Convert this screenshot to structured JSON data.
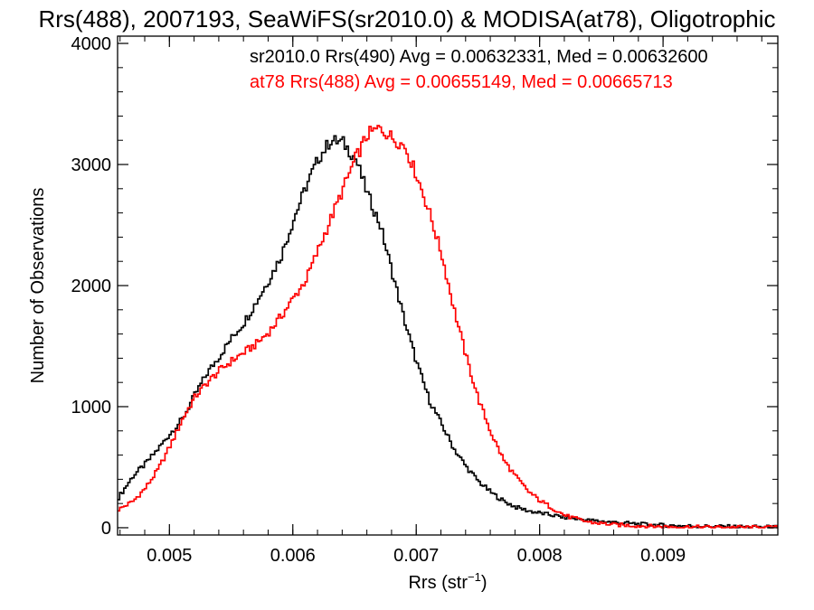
{
  "chart_data": {
    "type": "line",
    "title": "Rrs(488), 2007193, SeaWiFS(sr2010.0) & MODISA(at78), Oligotrophic",
    "xlabel": "Rrs (str",
    "xlabel_sup": "−1",
    "xlabel_close": ")",
    "ylabel": "Number of Observations",
    "xlim": [
      0.00458,
      0.00993
    ],
    "ylim": [
      -60,
      4060
    ],
    "x_ticks": [
      0.005,
      0.006,
      0.007,
      0.008,
      0.009
    ],
    "x_tick_labels": [
      "0.005",
      "0.006",
      "0.007",
      "0.008",
      "0.009"
    ],
    "y_ticks": [
      0,
      1000,
      2000,
      3000,
      4000
    ],
    "y_tick_labels": [
      "0",
      "1000",
      "2000",
      "3000",
      "4000"
    ],
    "x_minor_step": 0.0002,
    "y_minor_step": 200,
    "grid": false,
    "series": [
      {
        "name": "sr2010.0",
        "color": "#000000",
        "annotation": "sr2010.0 Rrs(490) Avg = 0.00632331, Med = 0.00632600",
        "x": [
          0.00458,
          0.0047,
          0.0048,
          0.0049,
          0.005,
          0.0051,
          0.0052,
          0.0053,
          0.0054,
          0.0055,
          0.0056,
          0.0057,
          0.0058,
          0.0059,
          0.006,
          0.0061,
          0.0062,
          0.0063,
          0.0064,
          0.0065,
          0.0066,
          0.0067,
          0.0068,
          0.0069,
          0.007,
          0.0071,
          0.0072,
          0.0073,
          0.0074,
          0.0075,
          0.0076,
          0.0077,
          0.0078,
          0.0079,
          0.008,
          0.0082,
          0.0084,
          0.0086,
          0.0088,
          0.009,
          0.0093,
          0.0096,
          0.00993
        ],
        "y": [
          250,
          430,
          530,
          650,
          780,
          900,
          1100,
          1280,
          1420,
          1570,
          1700,
          1870,
          2050,
          2250,
          2550,
          2820,
          3050,
          3200,
          3180,
          3050,
          2750,
          2500,
          2100,
          1700,
          1350,
          1050,
          850,
          650,
          500,
          380,
          290,
          220,
          170,
          140,
          120,
          85,
          60,
          45,
          30,
          20,
          12,
          8,
          5
        ]
      },
      {
        "name": "at78",
        "color": "#ff0000",
        "annotation": "at78 Rrs(488) Avg = 0.00655149, Med = 0.00665713",
        "x": [
          0.00458,
          0.0047,
          0.0048,
          0.0049,
          0.005,
          0.0051,
          0.0052,
          0.0053,
          0.0054,
          0.0055,
          0.0056,
          0.0057,
          0.0058,
          0.0059,
          0.006,
          0.0061,
          0.0062,
          0.0063,
          0.0064,
          0.0065,
          0.0066,
          0.0067,
          0.0068,
          0.0069,
          0.007,
          0.0071,
          0.0072,
          0.0073,
          0.0074,
          0.0075,
          0.0076,
          0.0077,
          0.0078,
          0.0079,
          0.008,
          0.0081,
          0.0082,
          0.0083,
          0.0084,
          0.0086,
          0.0088,
          0.009,
          0.0093,
          0.00993
        ],
        "y": [
          150,
          220,
          330,
          480,
          680,
          900,
          1080,
          1200,
          1300,
          1380,
          1450,
          1520,
          1620,
          1750,
          1900,
          2050,
          2300,
          2550,
          2800,
          3050,
          3250,
          3300,
          3220,
          3150,
          2900,
          2600,
          2250,
          1800,
          1400,
          1050,
          780,
          560,
          420,
          300,
          220,
          160,
          100,
          70,
          45,
          25,
          15,
          10,
          5,
          2
        ]
      }
    ]
  }
}
